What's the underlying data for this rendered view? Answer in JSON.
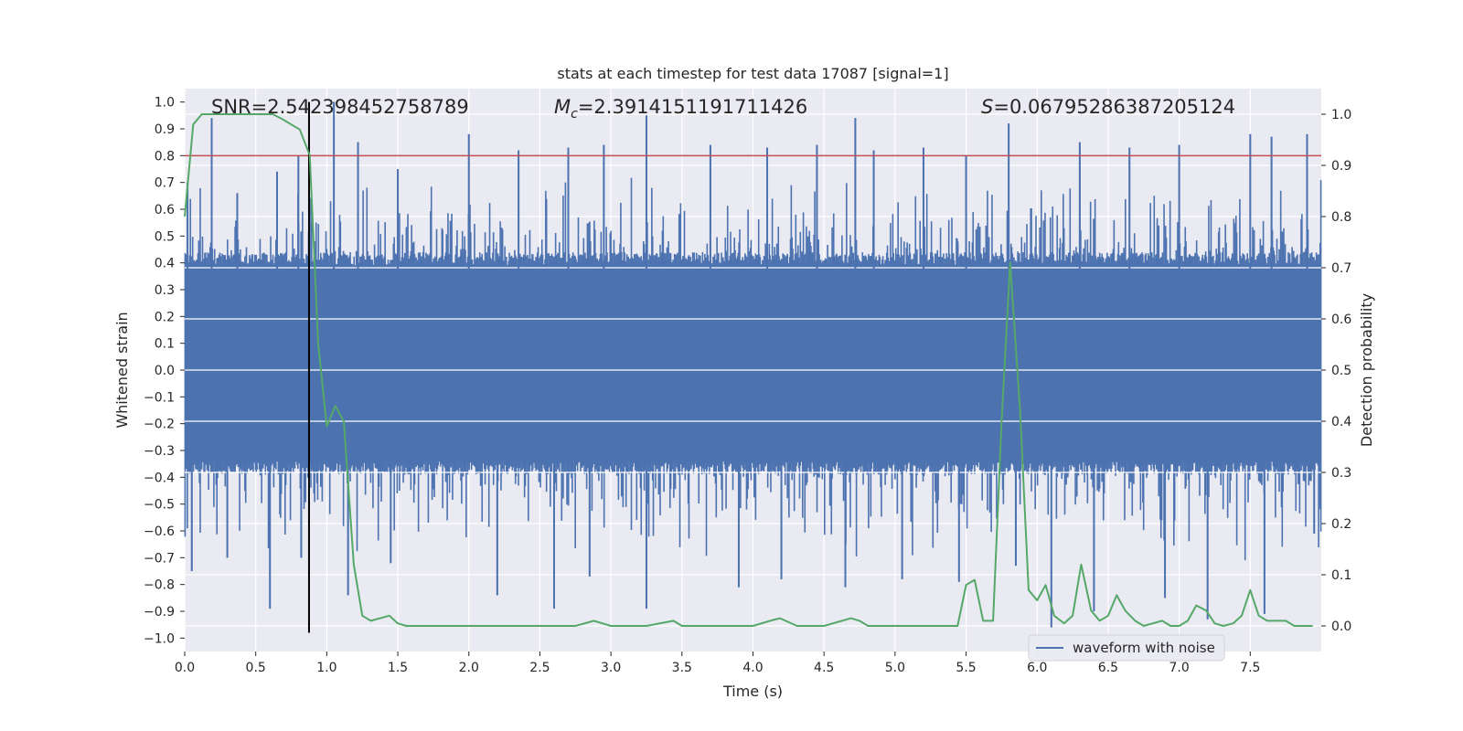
{
  "chart_data": {
    "type": "line",
    "title": "stats at each timestep for test data 17087 [signal=1]",
    "xlabel": "Time (s)",
    "ylabel_left": "Whitened strain",
    "ylabel_right": "Detection probability",
    "xlim": [
      0.0,
      8.0
    ],
    "ylim_left": [
      -1.05,
      1.05
    ],
    "ylim_right": [
      -0.05,
      1.05
    ],
    "x_ticks": [
      0.0,
      0.5,
      1.0,
      1.5,
      2.0,
      2.5,
      3.0,
      3.5,
      4.0,
      4.5,
      5.0,
      5.5,
      6.0,
      6.5,
      7.0,
      7.5
    ],
    "x_tick_labels": [
      "0.0",
      "0.5",
      "1.0",
      "1.5",
      "2.0",
      "2.5",
      "3.0",
      "3.5",
      "4.0",
      "4.5",
      "5.0",
      "5.5",
      "6.0",
      "6.5",
      "7.0",
      "7.5"
    ],
    "y_ticks_left": [
      1.0,
      0.9,
      0.8,
      0.7,
      0.6,
      0.5,
      0.4,
      0.3,
      0.2,
      0.1,
      0.0,
      -0.1,
      -0.2,
      -0.3,
      -0.4,
      -0.5,
      -0.6,
      -0.7,
      -0.8,
      -0.9,
      -1.0
    ],
    "y_tick_labels_left": [
      "1.0",
      "0.9",
      "0.8",
      "0.7",
      "0.6",
      "0.5",
      "0.4",
      "0.3",
      "0.2",
      "0.1",
      "0.0",
      "−0.1",
      "−0.2",
      "−0.3",
      "−0.4",
      "−0.5",
      "−0.6",
      "−0.7",
      "−0.8",
      "−0.9",
      "−1.0"
    ],
    "y_ticks_right": [
      1.0,
      0.9,
      0.8,
      0.7,
      0.6,
      0.5,
      0.4,
      0.3,
      0.2,
      0.1,
      0.0
    ],
    "y_tick_labels_right": [
      "1.0",
      "0.9",
      "0.8",
      "0.7",
      "0.6",
      "0.5",
      "0.4",
      "0.3",
      "0.2",
      "0.1",
      "0.0"
    ],
    "annotations": {
      "snr": "SNR=2.542398452758789",
      "mc_symbol": "M",
      "mc_subscript": "c",
      "mc_value": "=2.3914151191711426",
      "s_symbol": "S",
      "s_value": "=0.06795286387205124"
    },
    "threshold_line": {
      "y": 0.8,
      "axis": "left",
      "color": "#c44e52"
    },
    "vertical_marker": {
      "x": 0.875,
      "y_range": [
        -0.98,
        1.0
      ],
      "axis": "left",
      "color": "#000000"
    },
    "series": [
      {
        "name": "waveform with noise",
        "axis": "left",
        "color": "#4c72b0",
        "kind": "dense-noise",
        "x_range": [
          0.0,
          8.0
        ],
        "typical_envelope": [
          -0.36,
          0.41
        ],
        "peaks_positive": [
          {
            "x": 0.02,
            "y": 0.7
          },
          {
            "x": 0.19,
            "y": 0.94
          },
          {
            "x": 0.37,
            "y": 0.66
          },
          {
            "x": 0.65,
            "y": 0.74
          },
          {
            "x": 0.8,
            "y": 0.8
          },
          {
            "x": 1.05,
            "y": 1.0
          },
          {
            "x": 1.22,
            "y": 0.85
          },
          {
            "x": 1.5,
            "y": 0.75
          },
          {
            "x": 2.0,
            "y": 0.88
          },
          {
            "x": 2.35,
            "y": 0.82
          },
          {
            "x": 2.7,
            "y": 0.83
          },
          {
            "x": 2.95,
            "y": 0.84
          },
          {
            "x": 3.25,
            "y": 0.95
          },
          {
            "x": 3.7,
            "y": 0.84
          },
          {
            "x": 4.1,
            "y": 0.83
          },
          {
            "x": 4.45,
            "y": 0.84
          },
          {
            "x": 4.72,
            "y": 0.94
          },
          {
            "x": 4.85,
            "y": 0.82
          },
          {
            "x": 5.2,
            "y": 0.83
          },
          {
            "x": 5.5,
            "y": 0.8
          },
          {
            "x": 5.8,
            "y": 0.92
          },
          {
            "x": 6.3,
            "y": 0.85
          },
          {
            "x": 6.65,
            "y": 0.83
          },
          {
            "x": 7.0,
            "y": 0.84
          },
          {
            "x": 7.5,
            "y": 0.88
          },
          {
            "x": 7.65,
            "y": 0.87
          },
          {
            "x": 7.9,
            "y": 0.88
          }
        ],
        "peaks_negative": [
          {
            "x": 0.05,
            "y": -0.75
          },
          {
            "x": 0.3,
            "y": -0.7
          },
          {
            "x": 0.6,
            "y": -0.89
          },
          {
            "x": 0.82,
            "y": -0.7
          },
          {
            "x": 1.15,
            "y": -0.84
          },
          {
            "x": 1.45,
            "y": -0.72
          },
          {
            "x": 2.2,
            "y": -0.84
          },
          {
            "x": 2.6,
            "y": -0.89
          },
          {
            "x": 2.85,
            "y": -0.77
          },
          {
            "x": 3.25,
            "y": -0.89
          },
          {
            "x": 3.9,
            "y": -0.81
          },
          {
            "x": 4.2,
            "y": -0.78
          },
          {
            "x": 4.65,
            "y": -0.81
          },
          {
            "x": 5.05,
            "y": -0.78
          },
          {
            "x": 5.45,
            "y": -0.79
          },
          {
            "x": 5.85,
            "y": -0.73
          },
          {
            "x": 6.1,
            "y": -0.96
          },
          {
            "x": 6.4,
            "y": -0.9
          },
          {
            "x": 6.9,
            "y": -0.85
          },
          {
            "x": 7.2,
            "y": -0.93
          },
          {
            "x": 7.6,
            "y": -0.91
          },
          {
            "x": 7.95,
            "y": -0.61
          }
        ]
      },
      {
        "name": "detection probability",
        "axis": "right",
        "color": "#55a868",
        "x": [
          0.0,
          0.06,
          0.12,
          0.19,
          0.25,
          0.5,
          0.62,
          0.69,
          0.81,
          0.88,
          0.94,
          1.0,
          1.06,
          1.12,
          1.19,
          1.25,
          1.31,
          1.44,
          1.5,
          1.56,
          1.75,
          2.0,
          2.25,
          2.5,
          2.75,
          2.88,
          3.0,
          3.25,
          3.44,
          3.5,
          3.75,
          4.0,
          4.12,
          4.19,
          4.31,
          4.5,
          4.69,
          4.75,
          4.81,
          5.0,
          5.25,
          5.44,
          5.5,
          5.56,
          5.62,
          5.69,
          5.75,
          5.81,
          5.88,
          5.94,
          6.0,
          6.06,
          6.12,
          6.19,
          6.25,
          6.31,
          6.38,
          6.44,
          6.5,
          6.56,
          6.62,
          6.69,
          6.75,
          6.88,
          6.94,
          7.0,
          7.06,
          7.12,
          7.19,
          7.25,
          7.31,
          7.38,
          7.44,
          7.5,
          7.56,
          7.62,
          7.75,
          7.81,
          7.94
        ],
        "y": [
          0.8,
          0.98,
          1.0,
          1.0,
          1.0,
          1.0,
          1.0,
          0.99,
          0.97,
          0.92,
          0.55,
          0.39,
          0.43,
          0.4,
          0.12,
          0.02,
          0.01,
          0.02,
          0.005,
          0.0,
          0.0,
          0.0,
          0.0,
          0.0,
          0.0,
          0.01,
          0.0,
          0.0,
          0.01,
          0.0,
          0.0,
          0.0,
          0.01,
          0.015,
          0.0,
          0.0,
          0.015,
          0.01,
          0.0,
          0.0,
          0.0,
          0.0,
          0.08,
          0.09,
          0.01,
          0.01,
          0.4,
          0.71,
          0.42,
          0.07,
          0.05,
          0.08,
          0.02,
          0.005,
          0.02,
          0.12,
          0.03,
          0.01,
          0.02,
          0.06,
          0.03,
          0.01,
          0.0,
          0.01,
          0.0,
          0.0,
          0.01,
          0.04,
          0.03,
          0.005,
          0.0,
          0.005,
          0.02,
          0.07,
          0.02,
          0.01,
          0.01,
          0.0,
          0.0
        ]
      }
    ],
    "legend": {
      "position": "bottom-right",
      "entries": [
        "waveform with noise"
      ]
    },
    "grid": true
  },
  "colors": {
    "plot_bg": "#eaeaf2",
    "grid": "#ffffff",
    "waveform": "#4c72b0",
    "probability": "#55a868",
    "threshold": "#c44e52",
    "marker": "#000000"
  }
}
